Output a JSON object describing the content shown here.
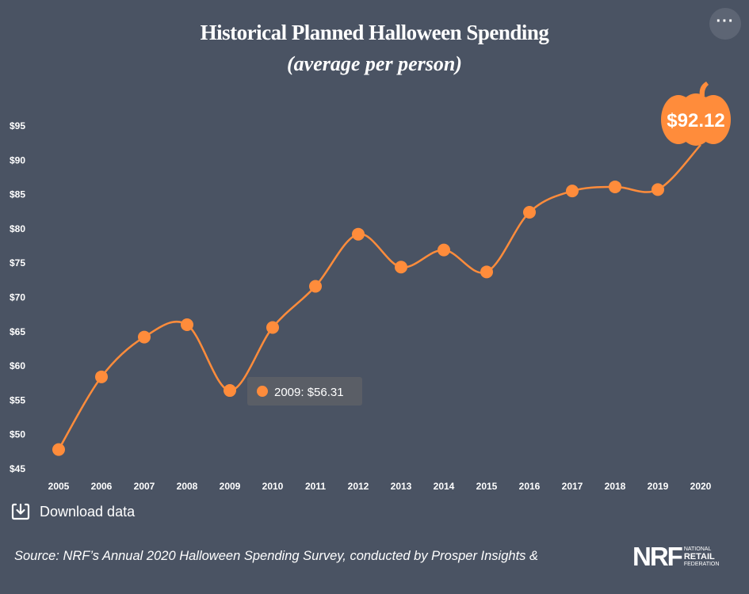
{
  "header": {
    "title": "Historical Planned Halloween Spending",
    "subtitle": "(average per person)",
    "menu_icon": "more-horizontal-icon",
    "menu_glyph": "···"
  },
  "chart_data": {
    "type": "line",
    "x": [
      "2005",
      "2006",
      "2007",
      "2008",
      "2009",
      "2010",
      "2011",
      "2012",
      "2013",
      "2014",
      "2015",
      "2016",
      "2017",
      "2018",
      "2019",
      "2020"
    ],
    "values": [
      47.7,
      58.3,
      64.1,
      65.9,
      56.31,
      65.5,
      71.5,
      79.1,
      74.3,
      76.8,
      73.6,
      82.3,
      85.4,
      86.0,
      85.6,
      92.12
    ],
    "ylim": [
      45,
      95
    ],
    "yticks": [
      95,
      90,
      85,
      80,
      75,
      70,
      65,
      60,
      55,
      50,
      45
    ],
    "ytick_labels": [
      "$95",
      "$90",
      "$85",
      "$80",
      "$75",
      "$70",
      "$65",
      "$60",
      "$55",
      "$50",
      "$45"
    ],
    "line_color": "#ff8c3b",
    "tooltip": {
      "index": 4,
      "text": "2009: $56.31"
    },
    "highlight": {
      "index": 15,
      "label": "$92.12"
    }
  },
  "footer": {
    "download_label": "Download data",
    "download_icon": "download-icon",
    "source": "Source: NRF’s Annual 2020 Halloween Spending Survey, conducted by Prosper Insights &",
    "logo": {
      "mark": "NRF",
      "line1": "National",
      "line2": "Retail",
      "line3": "Federation"
    }
  }
}
